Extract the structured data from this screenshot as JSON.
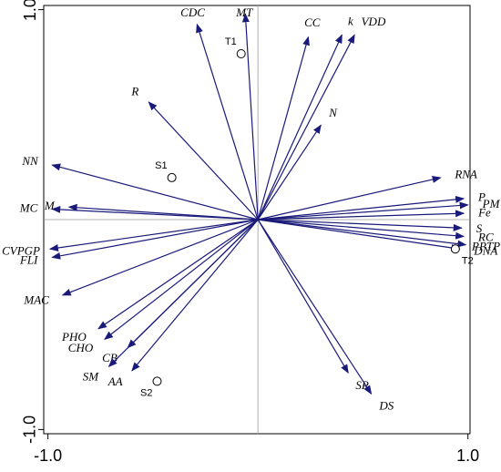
{
  "chart_data": {
    "type": "scatter",
    "title": "",
    "xlabel": "",
    "ylabel": "",
    "xlim": [
      -1.02,
      1.01
    ],
    "ylim": [
      -1.02,
      1.02
    ],
    "x_ticks": [
      "-1.0",
      "1.0"
    ],
    "y_ticks": [
      "1.0",
      "-1.0"
    ],
    "grid": false,
    "zero_lines": true,
    "arrow_color": "#1a1a7a",
    "variables": [
      {
        "name": "MT",
        "x": -0.06,
        "y": 0.98
      },
      {
        "name": "CDC",
        "x": -0.29,
        "y": 0.93
      },
      {
        "name": "CC",
        "x": 0.24,
        "y": 0.87
      },
      {
        "name": "k",
        "x": 0.4,
        "y": 0.88
      },
      {
        "name": "VDD",
        "x": 0.46,
        "y": 0.88
      },
      {
        "name": "R",
        "x": -0.52,
        "y": 0.56
      },
      {
        "name": "N",
        "x": 0.3,
        "y": 0.45
      },
      {
        "name": "NN",
        "x": -0.98,
        "y": 0.26
      },
      {
        "name": "M",
        "x": -0.9,
        "y": 0.06
      },
      {
        "name": "MC",
        "x": -0.98,
        "y": 0.05
      },
      {
        "name": "RNA",
        "x": 0.87,
        "y": 0.2
      },
      {
        "name": "P",
        "x": 0.98,
        "y": 0.1
      },
      {
        "name": "PM",
        "x": 1.0,
        "y": 0.07
      },
      {
        "name": "Fe",
        "x": 0.98,
        "y": 0.03
      },
      {
        "name": "S",
        "x": 0.97,
        "y": -0.04
      },
      {
        "name": "RC",
        "x": 0.98,
        "y": -0.08
      },
      {
        "name": "PPTP",
        "x": 0.99,
        "y": -0.12
      },
      {
        "name": "DNA",
        "x": 0.96,
        "y": -0.14
      },
      {
        "name": "CVPGP",
        "x": -0.99,
        "y": -0.14
      },
      {
        "name": "FLI",
        "x": -0.98,
        "y": -0.18
      },
      {
        "name": "MAC",
        "x": -0.93,
        "y": -0.36
      },
      {
        "name": "PHO",
        "x": -0.76,
        "y": -0.52
      },
      {
        "name": "CB",
        "x": -0.62,
        "y": -0.61
      },
      {
        "name": "CHO",
        "x": -0.73,
        "y": -0.57
      },
      {
        "name": "SM",
        "x": -0.71,
        "y": -0.7
      },
      {
        "name": "AA",
        "x": -0.6,
        "y": -0.72
      },
      {
        "name": "SR",
        "x": 0.43,
        "y": -0.73
      },
      {
        "name": "DS",
        "x": 0.54,
        "y": -0.83
      }
    ],
    "samples": [
      {
        "name": "T1",
        "x": -0.08,
        "y": 0.79
      },
      {
        "name": "S1",
        "x": -0.41,
        "y": 0.2
      },
      {
        "name": "T2",
        "x": 0.94,
        "y": -0.14
      },
      {
        "name": "S2",
        "x": -0.48,
        "y": -0.77
      }
    ]
  }
}
